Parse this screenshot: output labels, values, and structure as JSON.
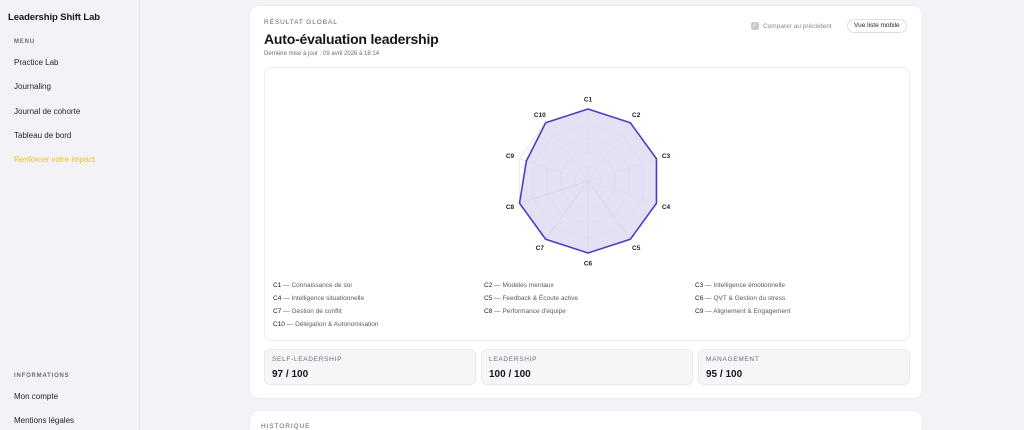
{
  "sidebar": {
    "brand": "Leadership Shift Lab",
    "menu_heading": "MENU",
    "menu_items": [
      {
        "label": "Practice Lab"
      },
      {
        "label": "Journaling"
      },
      {
        "label": "Journal de cohorte"
      },
      {
        "label": "Tableau de bord"
      },
      {
        "label": "Renforcer votre impact"
      }
    ],
    "info_heading": "INFORMATIONS",
    "info_items": [
      {
        "label": "Mon compte"
      },
      {
        "label": "Mentions légales"
      }
    ]
  },
  "main": {
    "eyebrow": "RÉSULTAT GLOBAL",
    "title": "Auto-évaluation leadership",
    "updated": "Dernière mise à jour : 09 avril 2026 à 18:14",
    "compare_label": "Comparer au précédent",
    "compare_checked": true,
    "mobile_button": "Vue liste mobile",
    "scores": [
      {
        "label": "SELF-LEADERSHIP",
        "value": "97 / 100"
      },
      {
        "label": "LEADERSHIP",
        "value": "100 / 100"
      },
      {
        "label": "MANAGEMENT",
        "value": "95 / 100"
      }
    ],
    "history_heading": "HISTORIQUE"
  },
  "legend": [
    {
      "code": "C1",
      "name": "Connaissance de soi"
    },
    {
      "code": "C2",
      "name": "Modèles mentaux"
    },
    {
      "code": "C3",
      "name": "Intelligence émotionnelle"
    },
    {
      "code": "C4",
      "name": "Intelligence situationnelle"
    },
    {
      "code": "C5",
      "name": "Feedback & Écoute active"
    },
    {
      "code": "C6",
      "name": "QVT & Gestion du stress"
    },
    {
      "code": "C7",
      "name": "Gestion de conflit"
    },
    {
      "code": "C8",
      "name": "Performance d'équipe"
    },
    {
      "code": "C9",
      "name": "Alignement & Engagement"
    },
    {
      "code": "C10",
      "name": "Délégation & Autonomisation"
    }
  ],
  "chart_data": {
    "type": "radar",
    "categories": [
      "C1",
      "C2",
      "C3",
      "C4",
      "C5",
      "C6",
      "C7",
      "C8",
      "C9",
      "C10"
    ],
    "values": [
      100,
      100,
      100,
      100,
      100,
      100,
      100,
      100,
      90,
      100
    ],
    "range": [
      0,
      100
    ],
    "grid": true,
    "colors": {
      "fill": "#d9d8f2",
      "stroke": "#4a3fc0",
      "grid": "#e0e0e8",
      "accent_spoke": "#f0b8b8"
    }
  }
}
